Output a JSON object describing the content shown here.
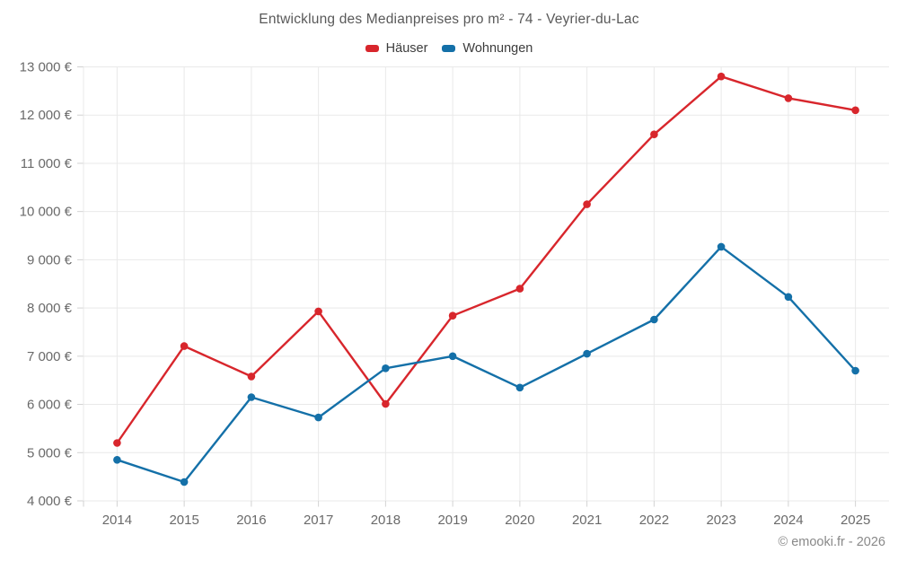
{
  "title": "Entwicklung des Medianpreises pro m² - 74 - Veyrier-du-Lac",
  "footer": "© emooki.fr - 2026",
  "chart_data": {
    "type": "line",
    "categories": [
      "2014",
      "2015",
      "2016",
      "2017",
      "2018",
      "2019",
      "2020",
      "2021",
      "2022",
      "2023",
      "2024",
      "2025"
    ],
    "series": [
      {
        "name": "Häuser",
        "color": "#d8262c",
        "values": [
          5200,
          7210,
          6580,
          7930,
          6010,
          7840,
          8400,
          10150,
          11600,
          12800,
          12350,
          12100
        ]
      },
      {
        "name": "Wohnungen",
        "color": "#1470a8",
        "values": [
          4850,
          4390,
          6150,
          5730,
          6750,
          7000,
          6350,
          7050,
          7760,
          9270,
          8230,
          6700
        ]
      }
    ],
    "ylim": [
      4000,
      13000
    ],
    "ytick_step": 1000,
    "ytick_format": "{n} 000 €",
    "grid": true,
    "legend_position": "top",
    "xlabel": "",
    "ylabel": ""
  },
  "colors": {
    "background": "#ffffff",
    "grid": "#e9e9e9",
    "tick": "#d2d2d2",
    "title_text": "#595959",
    "axis_text": "#6a6a6a",
    "legend_text": "#3c3c3c",
    "footer_text": "#898989",
    "series_hauser": "#d8262c",
    "series_wohnungen": "#1470a8"
  }
}
